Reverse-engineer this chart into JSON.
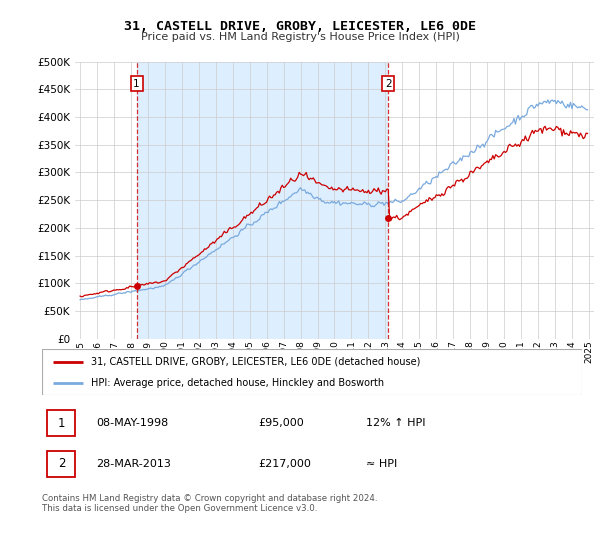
{
  "title": "31, CASTELL DRIVE, GROBY, LEICESTER, LE6 0DE",
  "subtitle": "Price paid vs. HM Land Registry's House Price Index (HPI)",
  "legend_label_red": "31, CASTELL DRIVE, GROBY, LEICESTER, LE6 0DE (detached house)",
  "legend_label_blue": "HPI: Average price, detached house, Hinckley and Bosworth",
  "annotation1_label": "1",
  "annotation1_date": "08-MAY-1998",
  "annotation1_price": "£95,000",
  "annotation1_hpi": "12% ↑ HPI",
  "annotation2_label": "2",
  "annotation2_date": "28-MAR-2013",
  "annotation2_price": "£217,000",
  "annotation2_hpi": "≈ HPI",
  "footer": "Contains HM Land Registry data © Crown copyright and database right 2024.\nThis data is licensed under the Open Government Licence v3.0.",
  "ylim": [
    0,
    500000
  ],
  "yticks": [
    0,
    50000,
    100000,
    150000,
    200000,
    250000,
    300000,
    350000,
    400000,
    450000,
    500000
  ],
  "sale1_year": 1998.36,
  "sale1_price": 95000,
  "sale2_year": 2013.24,
  "sale2_price": 217000,
  "red_color": "#cc0000",
  "blue_color": "#7aaadd",
  "shade_color": "#ddeeff",
  "vline_color": "#cc0000",
  "background_color": "#ffffff",
  "grid_color": "#cccccc"
}
